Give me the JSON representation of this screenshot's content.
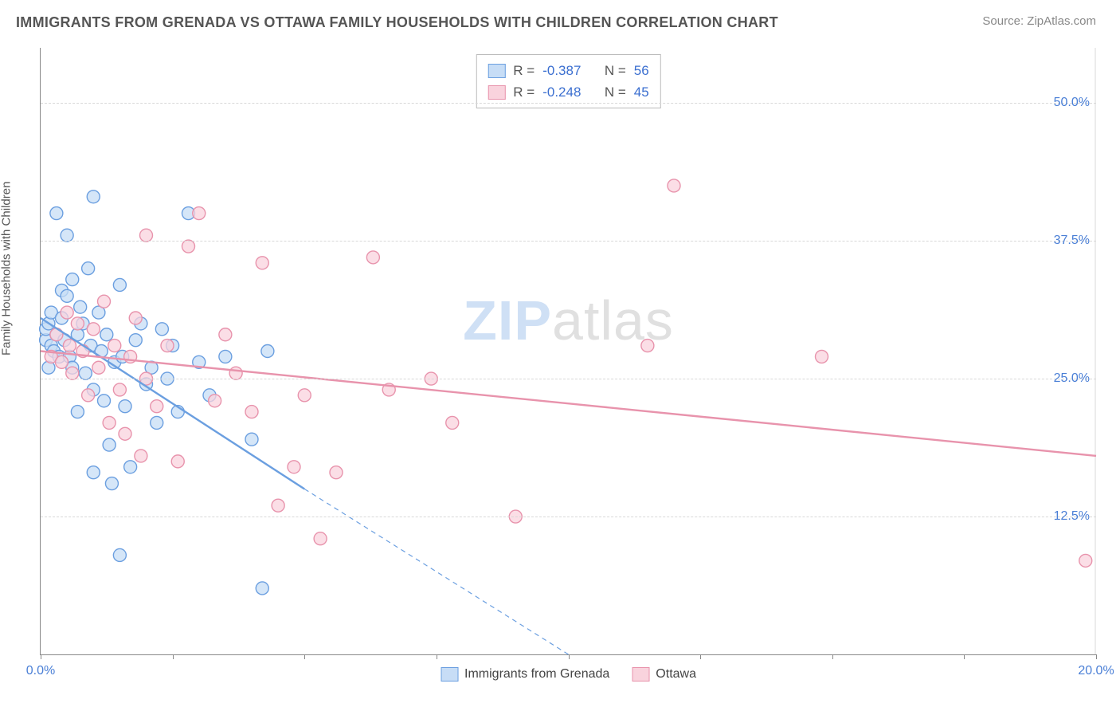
{
  "title": "IMMIGRANTS FROM GRENADA VS OTTAWA FAMILY HOUSEHOLDS WITH CHILDREN CORRELATION CHART",
  "source_label": "Source: ",
  "source_value": "ZipAtlas.com",
  "ylabel": "Family Households with Children",
  "watermark_a": "ZIP",
  "watermark_b": "atlas",
  "chart": {
    "type": "scatter_with_regression",
    "background_color": "#ffffff",
    "grid_color": "#d8d8d8",
    "axis_color": "#888888",
    "value_color": "#4a7fd6",
    "label_fontsize": 15,
    "tick_fontsize": 16,
    "title_fontsize": 18,
    "xlim": [
      0.0,
      20.0
    ],
    "ylim": [
      0.0,
      55.0
    ],
    "x_ticks": [
      0.0,
      2.5,
      5.0,
      7.5,
      10.0,
      12.5,
      15.0,
      17.5,
      20.0
    ],
    "x_tick_labels": {
      "0": "0.0%",
      "20": "20.0%"
    },
    "y_ticks": [
      12.5,
      25.0,
      37.5,
      50.0
    ],
    "y_tick_format": "{v}%",
    "marker_radius": 8,
    "marker_stroke_width": 1.4,
    "regression_line_width": 2.4,
    "series": [
      {
        "name": "Immigrants from Grenada",
        "key": "grenada",
        "fill": "#c7ddf6",
        "stroke": "#6b9fe0",
        "R": -0.387,
        "N": 56,
        "regression_solid": {
          "x1": 0.0,
          "y1": 30.5,
          "x2": 5.0,
          "y2": 15.0
        },
        "regression_dashed": {
          "x1": 5.0,
          "y1": 15.0,
          "x2": 10.0,
          "y2": 0.0
        },
        "points": [
          [
            0.1,
            28.5
          ],
          [
            0.1,
            29.5
          ],
          [
            0.15,
            30.0
          ],
          [
            0.2,
            31.0
          ],
          [
            0.2,
            28.0
          ],
          [
            0.25,
            27.5
          ],
          [
            0.3,
            40.0
          ],
          [
            0.3,
            29.0
          ],
          [
            0.35,
            27.0
          ],
          [
            0.4,
            30.5
          ],
          [
            0.4,
            33.0
          ],
          [
            0.45,
            28.5
          ],
          [
            0.5,
            38.0
          ],
          [
            0.5,
            32.5
          ],
          [
            0.55,
            27.0
          ],
          [
            0.6,
            34.0
          ],
          [
            0.6,
            26.0
          ],
          [
            0.7,
            29.0
          ],
          [
            0.7,
            22.0
          ],
          [
            0.75,
            31.5
          ],
          [
            0.8,
            30.0
          ],
          [
            0.85,
            25.5
          ],
          [
            0.9,
            35.0
          ],
          [
            0.95,
            28.0
          ],
          [
            1.0,
            24.0
          ],
          [
            1.0,
            41.5
          ],
          [
            1.1,
            31.0
          ],
          [
            1.15,
            27.5
          ],
          [
            1.2,
            23.0
          ],
          [
            1.25,
            29.0
          ],
          [
            1.3,
            19.0
          ],
          [
            1.35,
            15.5
          ],
          [
            1.4,
            26.5
          ],
          [
            1.5,
            9.0
          ],
          [
            1.5,
            33.5
          ],
          [
            1.55,
            27.0
          ],
          [
            1.6,
            22.5
          ],
          [
            1.7,
            17.0
          ],
          [
            1.8,
            28.5
          ],
          [
            1.9,
            30.0
          ],
          [
            2.0,
            24.5
          ],
          [
            2.1,
            26.0
          ],
          [
            2.2,
            21.0
          ],
          [
            2.3,
            29.5
          ],
          [
            2.4,
            25.0
          ],
          [
            2.5,
            28.0
          ],
          [
            2.6,
            22.0
          ],
          [
            2.8,
            40.0
          ],
          [
            3.0,
            26.5
          ],
          [
            3.2,
            23.5
          ],
          [
            3.5,
            27.0
          ],
          [
            4.0,
            19.5
          ],
          [
            4.2,
            6.0
          ],
          [
            4.3,
            27.5
          ],
          [
            0.15,
            26.0
          ],
          [
            1.0,
            16.5
          ]
        ]
      },
      {
        "name": "Ottawa",
        "key": "ottawa",
        "fill": "#f9d3dd",
        "stroke": "#e893ac",
        "R": -0.248,
        "N": 45,
        "regression_solid": {
          "x1": 0.0,
          "y1": 27.5,
          "x2": 20.0,
          "y2": 18.0
        },
        "points": [
          [
            0.2,
            27.0
          ],
          [
            0.3,
            29.0
          ],
          [
            0.4,
            26.5
          ],
          [
            0.5,
            31.0
          ],
          [
            0.55,
            28.0
          ],
          [
            0.6,
            25.5
          ],
          [
            0.7,
            30.0
          ],
          [
            0.8,
            27.5
          ],
          [
            0.9,
            23.5
          ],
          [
            1.0,
            29.5
          ],
          [
            1.1,
            26.0
          ],
          [
            1.2,
            32.0
          ],
          [
            1.3,
            21.0
          ],
          [
            1.4,
            28.0
          ],
          [
            1.5,
            24.0
          ],
          [
            1.6,
            20.0
          ],
          [
            1.7,
            27.0
          ],
          [
            1.8,
            30.5
          ],
          [
            1.9,
            18.0
          ],
          [
            2.0,
            25.0
          ],
          [
            2.2,
            22.5
          ],
          [
            2.4,
            28.0
          ],
          [
            2.6,
            17.5
          ],
          [
            2.8,
            37.0
          ],
          [
            3.0,
            40.0
          ],
          [
            3.3,
            23.0
          ],
          [
            3.7,
            25.5
          ],
          [
            4.0,
            22.0
          ],
          [
            4.2,
            35.5
          ],
          [
            4.5,
            13.5
          ],
          [
            4.8,
            17.0
          ],
          [
            5.0,
            23.5
          ],
          [
            5.3,
            10.5
          ],
          [
            5.6,
            16.5
          ],
          [
            6.3,
            36.0
          ],
          [
            6.6,
            24.0
          ],
          [
            7.4,
            25.0
          ],
          [
            7.8,
            21.0
          ],
          [
            9.0,
            12.5
          ],
          [
            11.5,
            28.0
          ],
          [
            12.0,
            42.5
          ],
          [
            14.8,
            27.0
          ],
          [
            19.8,
            8.5
          ],
          [
            3.5,
            29.0
          ],
          [
            2.0,
            38.0
          ]
        ]
      }
    ]
  },
  "legend_stats_labels": {
    "R": "R =",
    "N": "N ="
  }
}
